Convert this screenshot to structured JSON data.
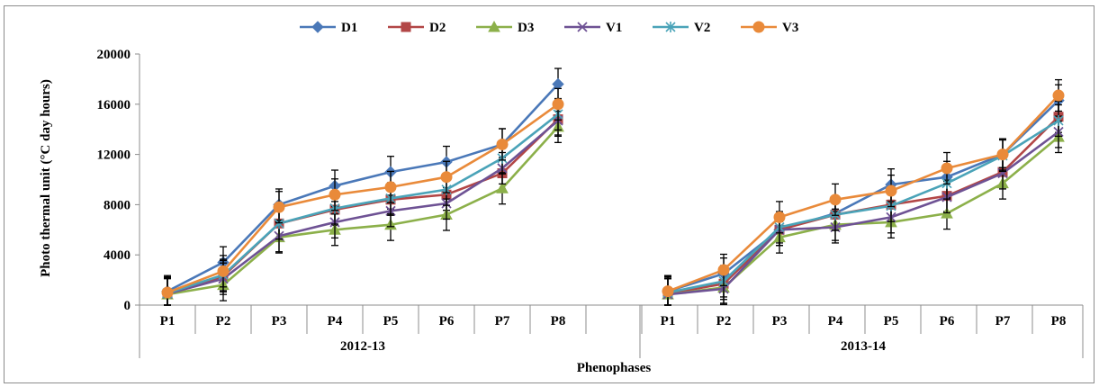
{
  "chart_data": {
    "type": "line",
    "ylabel": "Photo thermal unit (°C day hours)",
    "xlabel": "Phenophases",
    "ylim": [
      0,
      20000
    ],
    "yticks": [
      0,
      4000,
      8000,
      12000,
      16000,
      20000
    ],
    "ytick_labels": [
      "0",
      "4000",
      "8000",
      "12000",
      "16000",
      "20000"
    ],
    "categories": [
      "P1",
      "P2",
      "P3",
      "P4",
      "P5",
      "P6",
      "P7",
      "P8"
    ],
    "groups": [
      {
        "label": "2012-13",
        "series": [
          {
            "name": "D1",
            "values": [
              1100,
              3400,
              8000,
              9500,
              10600,
              11400,
              12800,
              17600
            ]
          },
          {
            "name": "D2",
            "values": [
              900,
              2300,
              6500,
              7600,
              8400,
              8800,
              10500,
              14800
            ]
          },
          {
            "name": "D3",
            "values": [
              850,
              1600,
              5400,
              6000,
              6400,
              7200,
              9300,
              14200
            ]
          },
          {
            "name": "V1",
            "values": [
              900,
              2100,
              5500,
              6600,
              7500,
              8100,
              10900,
              14700
            ]
          },
          {
            "name": "V2",
            "values": [
              950,
              2400,
              6500,
              7700,
              8500,
              9200,
              11700,
              15200
            ]
          },
          {
            "name": "V3",
            "values": [
              1000,
              2700,
              7800,
              8800,
              9400,
              10200,
              12800,
              16000
            ]
          }
        ]
      },
      {
        "label": "2013-14",
        "series": [
          {
            "name": "D1",
            "values": [
              1100,
              2500,
              6000,
              7300,
              9600,
              10200,
              12000,
              16300
            ]
          },
          {
            "name": "D2",
            "values": [
              900,
              1700,
              6000,
              7200,
              8000,
              8700,
              10600,
              15000
            ]
          },
          {
            "name": "D3",
            "values": [
              850,
              1400,
              5400,
              6400,
              6600,
              7300,
              9700,
              13400
            ]
          },
          {
            "name": "V1",
            "values": [
              850,
              1300,
              6000,
              6200,
              7000,
              8600,
              10500,
              13800
            ]
          },
          {
            "name": "V2",
            "values": [
              1000,
              1900,
              6200,
              7200,
              7900,
              9700,
              11900,
              14700
            ]
          },
          {
            "name": "V3",
            "values": [
              1100,
              2800,
              7000,
              8400,
              9100,
              10900,
              12000,
              16700
            ]
          }
        ]
      }
    ],
    "error_bar": 1250,
    "legend": {
      "position": "top"
    },
    "styles": {
      "D1": {
        "color": "#4a78b8",
        "marker": "diamond"
      },
      "D2": {
        "color": "#b24646",
        "marker": "square"
      },
      "D3": {
        "color": "#8cb04a",
        "marker": "triangle"
      },
      "V1": {
        "color": "#6e5294",
        "marker": "x"
      },
      "V2": {
        "color": "#4aa3b8",
        "marker": "star"
      },
      "V3": {
        "color": "#e98a3a",
        "marker": "circle"
      }
    }
  }
}
